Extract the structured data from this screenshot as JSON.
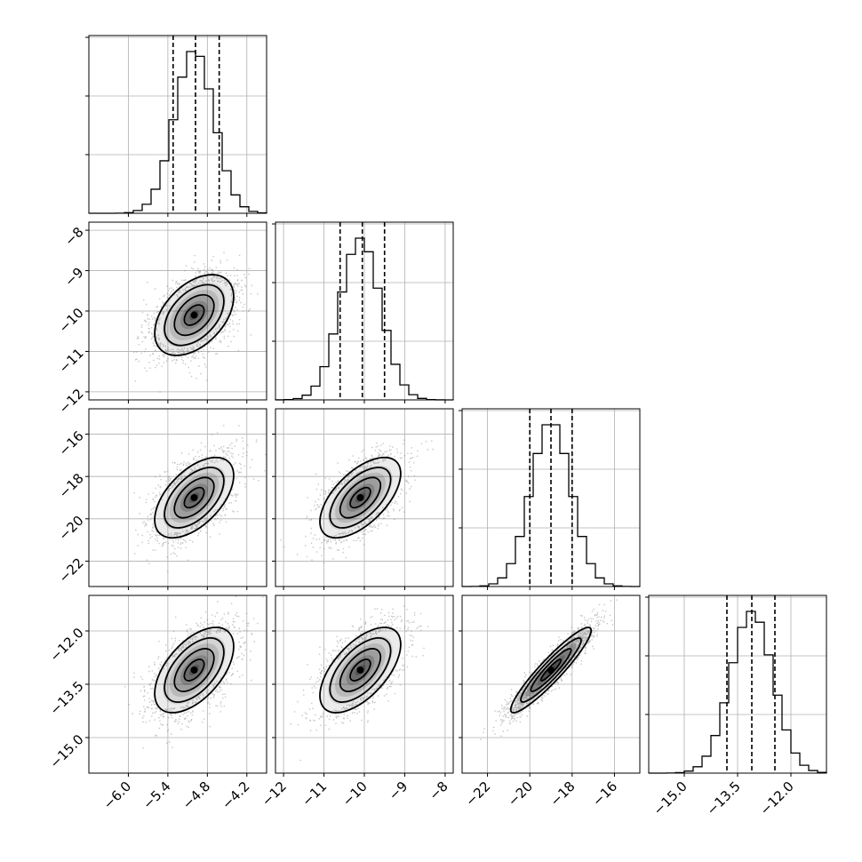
{
  "chart_data": {
    "type": "corner",
    "title": "",
    "parameters": [
      {
        "range": [
          -6.6,
          -3.9
        ],
        "ticks": [
          -6.0,
          -5.4,
          -4.8,
          -4.2
        ],
        "tick_labels": [
          "−6.0",
          "−5.4",
          "−4.8",
          "−4.2"
        ],
        "mean": -5.0,
        "sigma": 0.3,
        "quantiles": [
          -5.32,
          -4.98,
          -4.62
        ],
        "hist_peak_fraction": 0.91,
        "show_y_labels": false
      },
      {
        "range": [
          -12.2,
          -7.8
        ],
        "ticks": [
          -12,
          -11,
          -10,
          -9,
          -8
        ],
        "tick_labels": [
          "−12",
          "−11",
          "−10",
          "−9",
          "−8"
        ],
        "mean": -10.1,
        "sigma": 0.5,
        "quantiles": [
          -10.6,
          -10.05,
          -9.5
        ],
        "hist_peak_fraction": 0.91,
        "show_y_labels": true
      },
      {
        "range": [
          -23.2,
          -14.8
        ],
        "ticks": [
          -22,
          -20,
          -18,
          -16
        ],
        "tick_labels": [
          "−22",
          "−20",
          "−18",
          "−16"
        ],
        "mean": -19.0,
        "sigma": 0.95,
        "quantiles": [
          -20.0,
          -19.0,
          -18.0
        ],
        "hist_peak_fraction": 0.91,
        "show_y_labels": true
      },
      {
        "range": [
          -16.0,
          -11.0
        ],
        "ticks": [
          -15.0,
          -13.5,
          -12.0
        ],
        "tick_labels": [
          "−15.0",
          "−13.5",
          "−12.0"
        ],
        "mean": -13.1,
        "sigma": 0.6,
        "quantiles": [
          -13.8,
          -13.1,
          -12.45
        ],
        "hist_peak_fraction": 0.91,
        "show_y_labels": true
      }
    ],
    "correlations": [
      [
        1.0,
        0.45,
        0.55,
        0.55
      ],
      [
        0.45,
        1.0,
        0.6,
        0.6
      ],
      [
        0.55,
        0.6,
        1.0,
        0.93
      ],
      [
        0.55,
        0.6,
        0.93,
        1.0
      ]
    ],
    "contour_levels_sigma": [
      0.5,
      1.0,
      1.5,
      2.0
    ],
    "samples_per_panel": 2600,
    "grid": true,
    "xlabels": [
      "",
      "",
      "",
      ""
    ],
    "ylabels": [
      "",
      "",
      "",
      ""
    ],
    "colors": {
      "samples": "#808080",
      "contour": "#000000",
      "grid": "#b0b0b0",
      "density": "#000000"
    }
  }
}
